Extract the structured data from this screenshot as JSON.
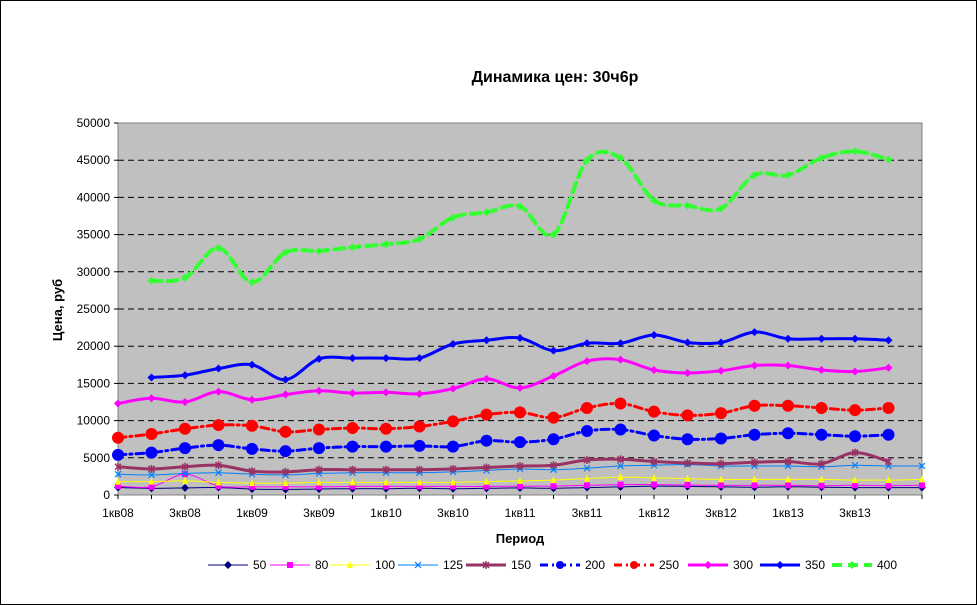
{
  "chart_data": {
    "type": "line",
    "title": "Динамика цен: 30ч6р",
    "xlabel": "Период",
    "ylabel": "Цена, руб",
    "ylim": [
      0,
      50000
    ],
    "y_ticks": [
      "0",
      "5000",
      "10000",
      "15000",
      "20000",
      "25000",
      "30000",
      "35000",
      "40000",
      "45000",
      "50000"
    ],
    "x_ticks": [
      "1кв08",
      "3кв08",
      "1кв09",
      "3кв09",
      "1кв10",
      "3кв10",
      "1кв11",
      "3кв11",
      "1кв12",
      "3кв12",
      "1кв13",
      "3кв13"
    ],
    "grid": "horizontal dashed",
    "legend": "bottom",
    "plot_background": "#c0c0c0",
    "series": [
      {
        "name": "50",
        "color": "#000080",
        "marker": "diamond",
        "width": 1,
        "dash": "",
        "values": [
          1000,
          900,
          950,
          1000,
          800,
          750,
          800,
          850,
          850,
          900,
          850,
          900,
          950,
          900,
          1000,
          1100,
          1200,
          1150,
          1100,
          1050,
          1100,
          1050,
          1000,
          1000,
          1000
        ]
      },
      {
        "name": "80",
        "color": "#ff00ff",
        "marker": "square",
        "width": 1,
        "dash": "",
        "values": [
          1200,
          1100,
          2800,
          1200,
          1100,
          1100,
          1100,
          1150,
          1150,
          1150,
          1150,
          1150,
          1200,
          1200,
          1300,
          1400,
          1400,
          1350,
          1300,
          1300,
          1300,
          1250,
          1300,
          1250,
          1300
        ]
      },
      {
        "name": "100",
        "color": "#ffff00",
        "marker": "triangle",
        "width": 1,
        "dash": "",
        "values": [
          1800,
          1800,
          1900,
          1700,
          1600,
          1600,
          1700,
          1700,
          1700,
          1700,
          1700,
          1800,
          1900,
          2000,
          2200,
          2400,
          2300,
          2200,
          2100,
          2100,
          2100,
          2100,
          2000,
          2000,
          2100
        ]
      },
      {
        "name": "125",
        "color": "#0080ff",
        "marker": "x",
        "width": 1,
        "dash": "",
        "values": [
          2800,
          2700,
          2900,
          3000,
          2800,
          2700,
          2900,
          3000,
          3000,
          3000,
          3100,
          3300,
          3500,
          3400,
          3600,
          3900,
          4000,
          4100,
          3900,
          3900,
          3900,
          3800,
          4000,
          3900,
          3900
        ]
      },
      {
        "name": "150",
        "color": "#993366",
        "marker": "star",
        "width": 3,
        "dash": "",
        "values": [
          3800,
          3500,
          3800,
          4000,
          3200,
          3100,
          3400,
          3400,
          3400,
          3400,
          3500,
          3700,
          3900,
          4000,
          4700,
          4800,
          4500,
          4300,
          4200,
          4400,
          4500,
          4200,
          5700,
          4500,
          null
        ]
      },
      {
        "name": "200",
        "color": "#0000ff",
        "marker": "circle",
        "width": 3,
        "dash": "8,4,2,4",
        "values": [
          5400,
          5700,
          6300,
          6700,
          6200,
          5900,
          6300,
          6500,
          6500,
          6600,
          6500,
          7300,
          7100,
          7500,
          8600,
          8800,
          8000,
          7500,
          7600,
          8100,
          8300,
          8100,
          7900,
          8100,
          null
        ]
      },
      {
        "name": "250",
        "color": "#ff0000",
        "marker": "circle",
        "width": 3,
        "dash": "8,4,2,4",
        "values": [
          7700,
          8200,
          8900,
          9400,
          9300,
          8500,
          8800,
          9000,
          8900,
          9200,
          9900,
          10800,
          11100,
          10400,
          11700,
          12300,
          11200,
          10700,
          11000,
          12000,
          12000,
          11700,
          11400,
          11700,
          null
        ]
      },
      {
        "name": "300",
        "color": "#ff00ff",
        "marker": "diamond",
        "width": 3,
        "dash": "",
        "values": [
          12300,
          13000,
          12500,
          13900,
          12800,
          13500,
          14000,
          13700,
          13800,
          13600,
          14300,
          15600,
          14400,
          16000,
          18000,
          18200,
          16800,
          16400,
          16700,
          17400,
          17400,
          16800,
          16600,
          17100,
          null
        ]
      },
      {
        "name": "350",
        "color": "#0000ff",
        "marker": "diamond",
        "width": 3,
        "dash": "",
        "values": [
          null,
          15800,
          16100,
          17000,
          17500,
          15500,
          18300,
          18400,
          18400,
          18400,
          20300,
          20800,
          21100,
          19400,
          20400,
          20400,
          21500,
          20500,
          20500,
          21900,
          21000,
          21000,
          21000,
          20800,
          null
        ]
      },
      {
        "name": "400",
        "color": "#33ff33",
        "marker": "diamond",
        "width": 4,
        "dash": "10,6",
        "values": [
          null,
          28800,
          29200,
          33200,
          28600,
          32600,
          32800,
          33300,
          33700,
          34400,
          37300,
          38000,
          38800,
          35000,
          45000,
          45300,
          39600,
          38900,
          38500,
          43000,
          43000,
          45300,
          46200,
          45100,
          null
        ]
      }
    ]
  }
}
